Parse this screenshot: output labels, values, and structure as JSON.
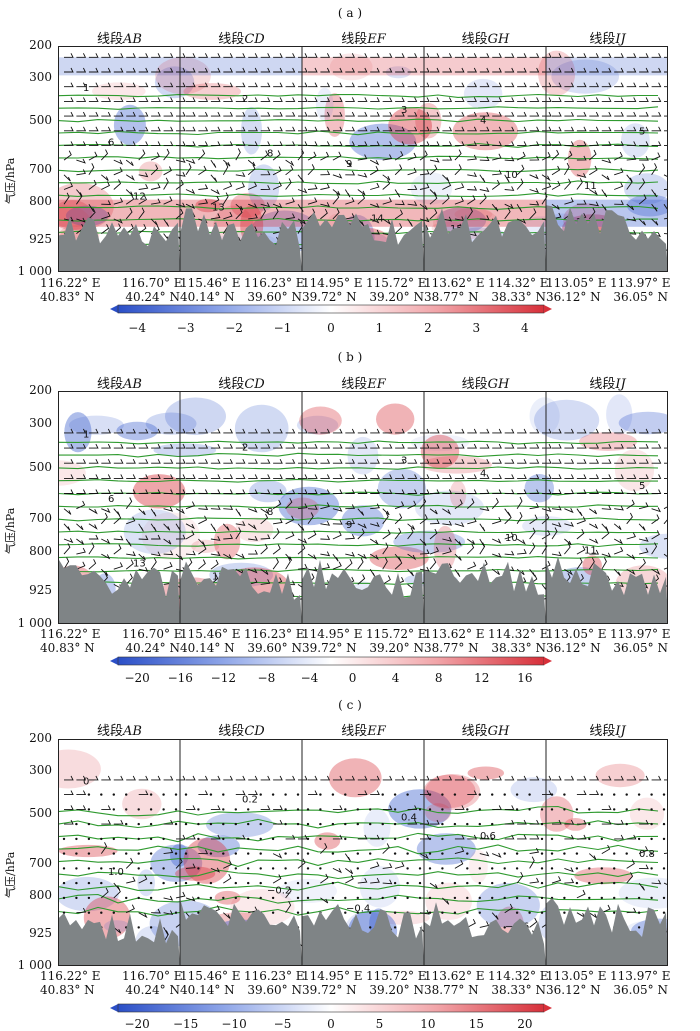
{
  "panels": [
    {
      "label": "( a )",
      "segments": [
        "线段",
        "线段",
        "线段",
        "线段",
        "线段"
      ],
      "segment_letters": [
        "AB",
        "CD",
        "EF",
        "GH",
        "IJ"
      ],
      "y_ticks": [
        "200",
        "300",
        "500",
        "700",
        "800",
        "925",
        "1 000"
      ],
      "y_label": "气压/hPa",
      "coords": [
        [
          "116.22° E",
          "40.83° N"
        ],
        [
          "116.70° E",
          "40.24° N"
        ],
        [
          "115.46° E",
          "40.14° N"
        ],
        [
          "116.23° E",
          "39.60° N"
        ],
        [
          "114.95° E",
          "39.72° N"
        ],
        [
          "115.72° E",
          "39.20° N"
        ],
        [
          "113.62° E",
          "38.77° N"
        ],
        [
          "114.32° E",
          "38.33° N"
        ],
        [
          "113.05° E",
          "36.12° N"
        ],
        [
          "113.97° E",
          "36.05° N"
        ]
      ],
      "colorbar_ticks": [
        "−4",
        "−3",
        "−2",
        "−1",
        "0",
        "1",
        "2",
        "3",
        "4"
      ],
      "contour_labels": [
        "1",
        "2",
        "3",
        "4",
        "5",
        "6",
        "8",
        "9",
        "10",
        "11",
        "12",
        "13",
        "14",
        "15",
        "16"
      ]
    },
    {
      "label": "( b )",
      "segments": [
        "线段",
        "线段",
        "线段",
        "线段",
        "线段"
      ],
      "segment_letters": [
        "AB",
        "CD",
        "EF",
        "GH",
        "IJ"
      ],
      "y_ticks": [
        "200",
        "300",
        "500",
        "700",
        "800",
        "925",
        "1 000"
      ],
      "y_label": "气压/hPa",
      "coords": [
        [
          "116.22° E",
          "40.83° N"
        ],
        [
          "116.70° E",
          "40.24° N"
        ],
        [
          "115.46° E",
          "40.14° N"
        ],
        [
          "116.23° E",
          "39.60° N"
        ],
        [
          "114.95° E",
          "39.72° N"
        ],
        [
          "115.72° E",
          "39.20° N"
        ],
        [
          "113.62° E",
          "38.77° N"
        ],
        [
          "114.32° E",
          "38.33° N"
        ],
        [
          "113.05° E",
          "36.12° N"
        ],
        [
          "113.97° E",
          "36.05° N"
        ]
      ],
      "colorbar_ticks": [
        "−20",
        "−16",
        "−12",
        "−8",
        "−4",
        "0",
        "4",
        "8",
        "12",
        "16"
      ],
      "contour_labels": [
        "1",
        "2",
        "3",
        "4",
        "5",
        "6",
        "8",
        "9",
        "10",
        "11",
        "13",
        "15",
        "18"
      ]
    },
    {
      "label": "( c )",
      "segments": [
        "线段",
        "线段",
        "线段",
        "线段",
        "线段"
      ],
      "segment_letters": [
        "AB",
        "CD",
        "EF",
        "GH",
        "IJ"
      ],
      "y_ticks": [
        "200",
        "300",
        "500",
        "700",
        "800",
        "925",
        "1 000"
      ],
      "y_label": "气压/hPa",
      "coords": [
        [
          "116.22° E",
          "40.83° N"
        ],
        [
          "116.70° E",
          "40.24° N"
        ],
        [
          "115.46° E",
          "40.14° N"
        ],
        [
          "116.23° E",
          "39.60° N"
        ],
        [
          "114.95° E",
          "39.72° N"
        ],
        [
          "115.72° E",
          "39.20° N"
        ],
        [
          "113.62° E",
          "38.77° N"
        ],
        [
          "114.32° E",
          "38.33° N"
        ],
        [
          "113.05° E",
          "36.12° N"
        ],
        [
          "113.97° E",
          "36.05° N"
        ]
      ],
      "colorbar_ticks": [
        "−20",
        "−15",
        "−10",
        "−5",
        "0",
        "5",
        "10",
        "15",
        "20"
      ],
      "contour_labels": [
        "0",
        "0.2",
        "0.4",
        "0.6",
        "0.8",
        "1.0",
        "−0.2",
        "−0.4",
        "−0.6"
      ]
    }
  ],
  "colors": {
    "negative": "#3a5fcd",
    "positive": "#d7303a",
    "terrain": "#7f8486",
    "contour": "#2f9a2f",
    "frame": "#222222"
  }
}
